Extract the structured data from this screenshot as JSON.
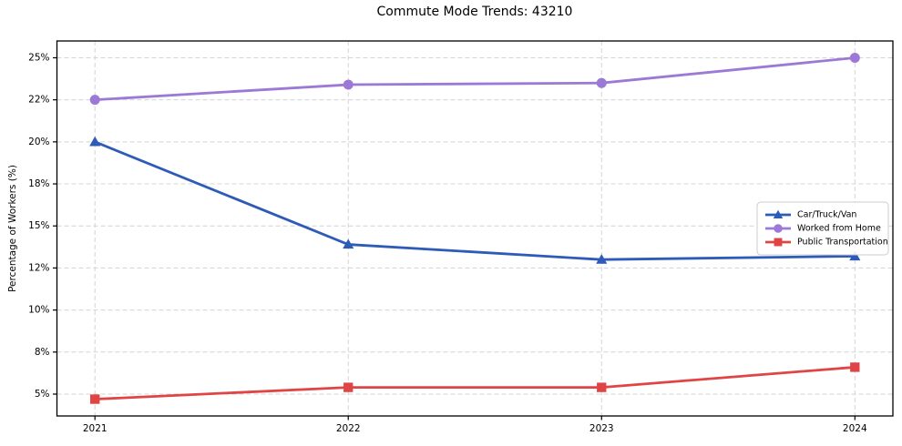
{
  "figure": {
    "title": "Commute Mode Trends: 43210"
  },
  "chart_data": {
    "type": "line",
    "title": "Commute Mode Trends: 43210",
    "xlabel": "",
    "ylabel": "Percentage of Workers (%)",
    "x": [
      2021,
      2022,
      2023,
      2024
    ],
    "x_tick_labels": [
      "2021",
      "2022",
      "2023",
      "2024"
    ],
    "series": [
      {
        "name": "Car/Truck/Van",
        "marker": "triangle",
        "color": "#2d5bb7",
        "values": [
          20.0,
          13.9,
          13.0,
          13.2
        ]
      },
      {
        "name": "Worked from Home",
        "marker": "circle",
        "color": "#9c79d6",
        "values": [
          22.5,
          23.4,
          23.5,
          25.0
        ]
      },
      {
        "name": "Public Transportation",
        "marker": "square",
        "color": "#e04444",
        "values": [
          4.7,
          5.4,
          5.4,
          6.6
        ]
      }
    ],
    "xlim": [
      2020.85,
      2024.15
    ],
    "ylim": [
      3.7,
      26.0
    ],
    "y_ticks": [
      5,
      7.5,
      10,
      12.5,
      15,
      17.5,
      20,
      22.5,
      25
    ],
    "y_tick_labels": [
      "5%",
      "8%",
      "10%",
      "12%",
      "15%",
      "18%",
      "20%",
      "22%",
      "25%"
    ],
    "grid": "dashed",
    "grid_color": "#d4d4d4",
    "axis_color": "#000000",
    "legend": {
      "position": "center-right",
      "entries": [
        "Car/Truck/Van",
        "Worked from Home",
        "Public Transportation"
      ]
    }
  }
}
